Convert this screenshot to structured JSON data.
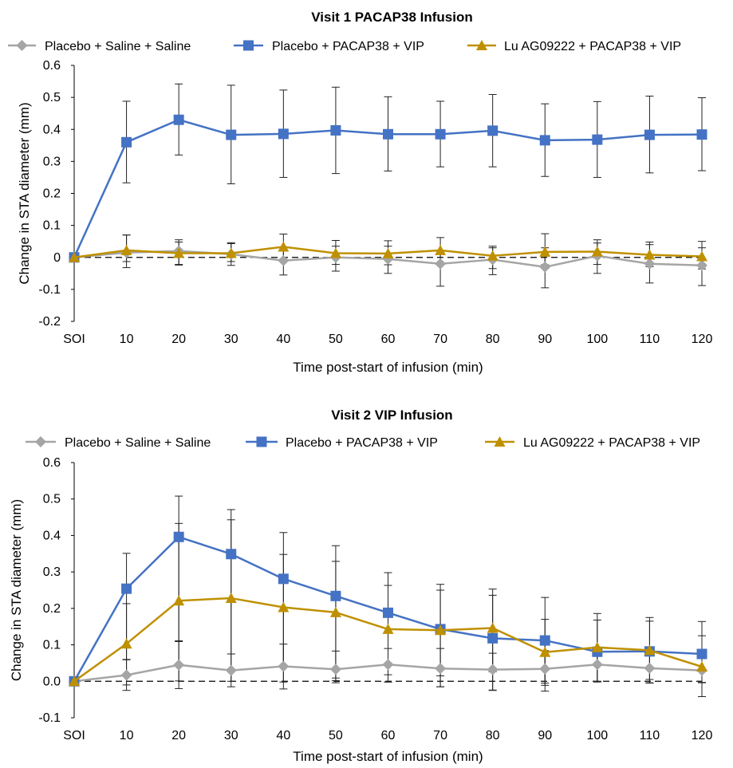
{
  "chart_data": [
    {
      "type": "line",
      "title": "Visit 1 PACAP38 Infusion",
      "xlabel": "Time post-start of infusion (min)",
      "ylabel": "Change in STA diameter (mm)",
      "categories": [
        "SOI",
        "10",
        "20",
        "30",
        "40",
        "50",
        "60",
        "70",
        "80",
        "90",
        "100",
        "110",
        "120"
      ],
      "x": [
        0,
        10,
        20,
        30,
        40,
        50,
        60,
        70,
        80,
        90,
        100,
        110,
        120
      ],
      "ylim": [
        -0.2,
        0.6
      ],
      "yticks": [
        -0.2,
        -0.1,
        0.0,
        0.1,
        0.2,
        0.3,
        0.4,
        0.5,
        0.6
      ],
      "ytick_labels": [
        "-0.2",
        "-0.1",
        "0",
        "0.1",
        "0.2",
        "0.3",
        "0.4",
        "0.5",
        "0.6"
      ],
      "legend_position": "top",
      "series": [
        {
          "name": "Placebo + Saline + Saline",
          "color": "#A5A5A5",
          "marker": "diamond",
          "values": [
            0.0,
            0.015,
            0.02,
            0.01,
            -0.01,
            0.0,
            -0.005,
            -0.02,
            -0.007,
            -0.03,
            0.005,
            -0.02,
            -0.025
          ],
          "err_hi": [
            null,
            0.055,
            0.035,
            0.033,
            0.033,
            0.035,
            0.04,
            0.04,
            0.037,
            0.06,
            0.04,
            0.06,
            0.055
          ],
          "err_lo": [
            null,
            0.047,
            0.042,
            0.035,
            0.045,
            0.043,
            0.045,
            0.07,
            0.047,
            0.065,
            0.055,
            0.06,
            0.063
          ]
        },
        {
          "name": "Placebo + PACAP38 + VIP",
          "color": "#4472C4",
          "marker": "square",
          "values": [
            0.0,
            0.36,
            0.43,
            0.383,
            0.386,
            0.397,
            0.385,
            0.385,
            0.396,
            0.366,
            0.368,
            0.383,
            0.384
          ],
          "err_hi": [
            null,
            0.128,
            0.112,
            0.155,
            0.137,
            0.135,
            0.117,
            0.103,
            0.113,
            0.114,
            0.119,
            0.121,
            0.115
          ],
          "err_lo": [
            null,
            0.127,
            0.11,
            0.153,
            0.136,
            0.135,
            0.115,
            0.102,
            0.113,
            0.113,
            0.118,
            0.119,
            0.113
          ]
        },
        {
          "name": "Lu AG09222 + PACAP38 + VIP",
          "color": "#BF9000",
          "marker": "triangle",
          "values": [
            0.0,
            0.022,
            0.013,
            0.013,
            0.033,
            0.013,
            0.012,
            0.022,
            0.005,
            0.017,
            0.018,
            0.008,
            0.003
          ],
          "err_hi": [
            null,
            0.048,
            0.035,
            0.033,
            0.04,
            0.04,
            0.04,
            0.04,
            0.03,
            0.057,
            0.037,
            0.04,
            0.047
          ],
          "err_lo": [
            null,
            0.035,
            0.037,
            0.026,
            0.04,
            0.035,
            0.035,
            0.04,
            0.04,
            0.04,
            0.04,
            0.037,
            0.039
          ]
        }
      ]
    },
    {
      "type": "line",
      "title": "Visit 2 VIP Infusion",
      "xlabel": "Time post-start of infusion (min)",
      "ylabel": "Change in STA diameter (mm)",
      "categories": [
        "SOI",
        "10",
        "20",
        "30",
        "40",
        "50",
        "60",
        "70",
        "80",
        "90",
        "100",
        "110",
        "120"
      ],
      "x": [
        0,
        10,
        20,
        30,
        40,
        50,
        60,
        70,
        80,
        90,
        100,
        110,
        120
      ],
      "ylim": [
        -0.1,
        0.6
      ],
      "yticks": [
        -0.1,
        0.0,
        0.1,
        0.2,
        0.3,
        0.4,
        0.5,
        0.6
      ],
      "ytick_labels": [
        "-0.1",
        "0.0",
        "0.1",
        "0.2",
        "0.3",
        "0.4",
        "0.5",
        "0.6"
      ],
      "legend_position": "top",
      "series": [
        {
          "name": "Placebo + Saline + Saline",
          "color": "#A5A5A5",
          "marker": "diamond",
          "values": [
            0.0,
            0.017,
            0.045,
            0.03,
            0.041,
            0.033,
            0.046,
            0.035,
            0.032,
            0.034,
            0.046,
            0.036,
            0.03
          ],
          "err_hi": [
            null,
            0.042,
            0.066,
            0.045,
            0.061,
            0.05,
            0.044,
            0.055,
            0.045,
            0.05,
            0.043,
            0.045,
            0.04
          ],
          "err_lo": [
            null,
            0.042,
            0.065,
            0.045,
            0.062,
            0.037,
            0.048,
            0.05,
            0.056,
            0.045,
            0.046,
            0.04,
            0.072
          ]
        },
        {
          "name": "Placebo + PACAP38 + VIP",
          "color": "#4472C4",
          "marker": "square",
          "values": [
            0.0,
            0.254,
            0.396,
            0.349,
            0.281,
            0.234,
            0.188,
            0.143,
            0.118,
            0.112,
            0.081,
            0.082,
            0.075
          ],
          "err_hi": [
            null,
            0.097,
            0.112,
            0.122,
            0.127,
            0.138,
            0.11,
            0.123,
            0.135,
            0.118,
            0.105,
            0.093,
            0.089
          ],
          "err_lo": [
            null,
            0.194,
            0.287,
            0.274,
            0.24,
            0.232,
            0.19,
            0.158,
            0.143,
            0.139,
            0.081,
            0.087,
            0.078
          ]
        },
        {
          "name": "Lu AG09222 + PACAP38 + VIP",
          "color": "#BF9000",
          "marker": "triangle",
          "values": [
            0.0,
            0.103,
            0.221,
            0.228,
            0.203,
            0.189,
            0.143,
            0.14,
            0.146,
            0.08,
            0.093,
            0.085,
            0.04
          ],
          "err_hi": [
            null,
            0.11,
            0.212,
            0.215,
            0.145,
            0.14,
            0.12,
            0.11,
            0.09,
            0.09,
            0.075,
            0.08,
            0.085
          ],
          "err_lo": [
            null,
            0.113,
            0.22,
            0.228,
            0.205,
            0.18,
            0.125,
            0.125,
            0.12,
            0.085,
            0.095,
            0.08,
            0.044
          ]
        }
      ]
    }
  ]
}
